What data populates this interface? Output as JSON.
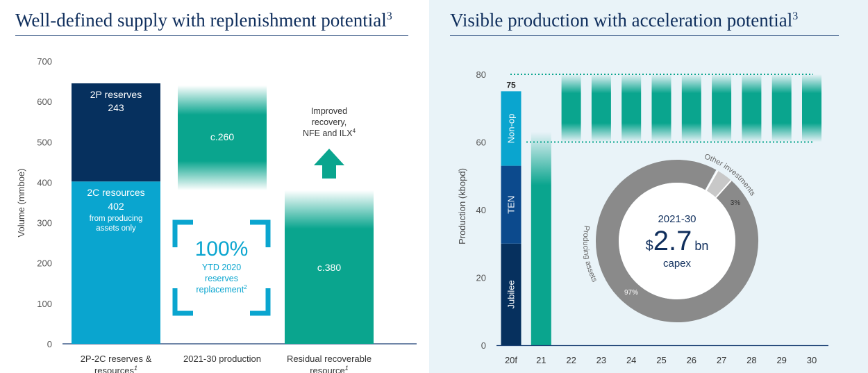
{
  "left_title": "Well-defined supply with replenishment potential",
  "left_title_sup": "3",
  "right_title": "Visible production with acceleration potential",
  "right_title_sup": "3",
  "colors": {
    "navy": "#06305e",
    "cyan": "#0aa5cf",
    "teal": "#0aa58e",
    "blue": "#0c4a8d",
    "grey": "#8a8a8a",
    "light_grey": "#c8c8c8"
  },
  "chart_data": [
    {
      "type": "bar",
      "title": "Well-defined supply with replenishment potential",
      "ylabel": "Volume (mmboe)",
      "ylim": [
        0,
        700
      ],
      "yticks": [
        "0",
        "100",
        "200",
        "300",
        "400",
        "500",
        "600",
        "700"
      ],
      "categories": [
        "2P-2C reserves & resources",
        "2021-30 production",
        "Residual recoverable resource"
      ],
      "category_sups": [
        "1",
        "",
        "1"
      ],
      "stacks": [
        {
          "name": "2C resources",
          "value": 402,
          "bottom": 0,
          "category": 0,
          "labels": [
            "2C resources",
            "402",
            "from producing",
            "assets only"
          ]
        },
        {
          "name": "2P reserves",
          "value": 243,
          "bottom": 402,
          "category": 0,
          "labels": [
            "2P reserves",
            "243"
          ]
        },
        {
          "name": "2021-30 production",
          "value": 260,
          "bottom": 380,
          "category": 1,
          "labels": [
            "c.260"
          ]
        },
        {
          "name": "Residual recoverable resource",
          "value": 380,
          "bottom": 0,
          "category": 2,
          "labels": [
            "c.380"
          ]
        }
      ],
      "annotations": {
        "callout_value": "100%",
        "callout_lines": [
          "YTD 2020",
          "reserves",
          "replacement"
        ],
        "callout_sup": "2",
        "arrow_lines": [
          "Improved",
          "recovery,",
          "NFE and ILX"
        ],
        "arrow_sup": "4"
      }
    },
    {
      "type": "bar",
      "title": "Visible production with acceleration potential",
      "ylabel": "Production (kbopd)",
      "ylim": [
        0,
        80
      ],
      "yticks": [
        "0",
        "20",
        "40",
        "60",
        "80"
      ],
      "categories": [
        "20f",
        "21",
        "22",
        "23",
        "24",
        "25",
        "26",
        "27",
        "28",
        "29",
        "30"
      ],
      "stack_2020f": [
        {
          "name": "Jubilee",
          "value": 30
        },
        {
          "name": "TEN",
          "value": 23
        },
        {
          "name": "Non-op",
          "value": 22
        }
      ],
      "total_2020f": "75",
      "bar_2021": 63,
      "range_2022_30": {
        "low": 60,
        "high": 80
      },
      "dotted_lines": [
        60,
        80
      ],
      "donut": {
        "period": "2021-30",
        "currency": "$",
        "amount": "2.7",
        "unit": "bn",
        "caption": "capex",
        "segments": [
          {
            "name": "Producing assets",
            "percent": 97,
            "label": "97%"
          },
          {
            "name": "Other investments",
            "percent": 3,
            "label": "3%"
          }
        ]
      }
    }
  ]
}
